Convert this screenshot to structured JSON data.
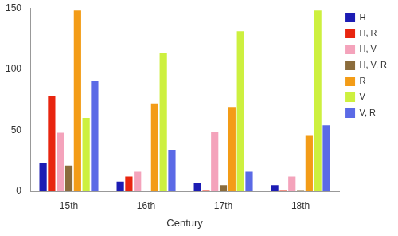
{
  "chart_data": {
    "type": "bar",
    "x_label": "Century",
    "categories": [
      "15th",
      "16th",
      "17th",
      "18th"
    ],
    "series": [
      {
        "name": "H",
        "color": "#1c1cb4",
        "values": [
          23,
          8,
          7,
          5
        ]
      },
      {
        "name": "H, R",
        "color": "#e8250f",
        "values": [
          78,
          12,
          1,
          1
        ]
      },
      {
        "name": "H, V",
        "color": "#f4a3bb",
        "values": [
          48,
          16,
          49,
          12
        ]
      },
      {
        "name": "H, V, R",
        "color": "#8b6c3c",
        "values": [
          21,
          0,
          5,
          1
        ]
      },
      {
        "name": "R",
        "color": "#f39c17",
        "values": [
          148,
          72,
          69,
          46
        ]
      },
      {
        "name": "V",
        "color": "#cdf03f",
        "values": [
          60,
          113,
          131,
          148
        ]
      },
      {
        "name": "V, R",
        "color": "#5b6ae6",
        "values": [
          90,
          34,
          16,
          54
        ]
      }
    ],
    "ylim": [
      0,
      150
    ],
    "yticks": [
      0,
      50,
      100,
      150
    ],
    "grid": false,
    "legend": "right"
  }
}
